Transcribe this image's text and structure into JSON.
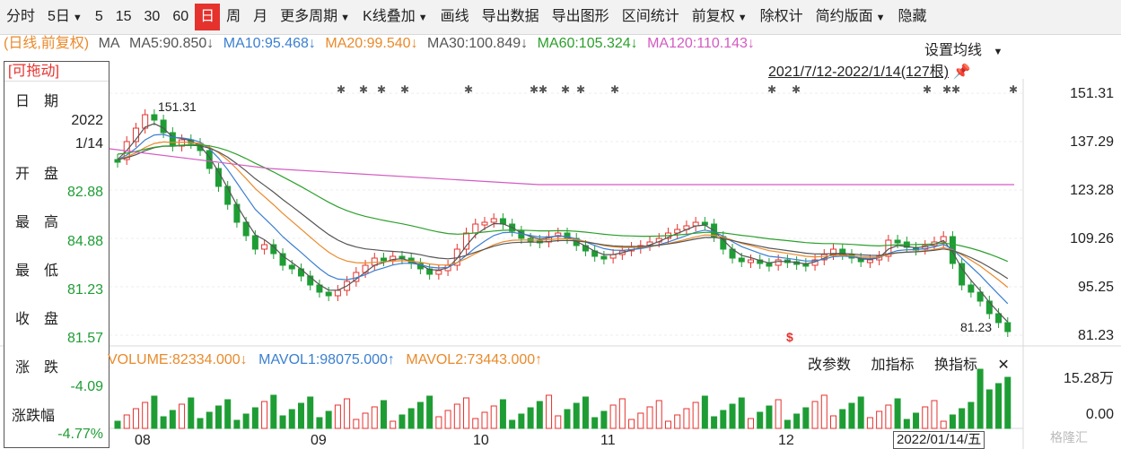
{
  "toolbar": {
    "items": [
      "分时",
      "5日",
      "5",
      "15",
      "30",
      "60",
      "日",
      "周",
      "月",
      "更多周期",
      "K线叠加",
      "画线",
      "导出数据",
      "导出图形",
      "区间统计",
      "前复权",
      "除权计",
      "简约版面",
      "隐藏"
    ],
    "active": "日"
  },
  "legend": {
    "prefix": "(日线,前复权)",
    "ma": "MA",
    "ma5": "MA5:90.850↓",
    "ma10": "MA10:95.468↓",
    "ma20": "MA20:99.540↓",
    "ma30": "MA30:100.849↓",
    "ma60": "MA60:105.324↓",
    "ma120": "MA120:110.143↓",
    "colors": {
      "ma5": "#555555",
      "ma10": "#3b7fd0",
      "ma20": "#e98a2b",
      "ma30": "#555555",
      "ma60": "#2ca02c",
      "ma120": "#d45ac2"
    }
  },
  "set_ma": "设置均线",
  "date_range": "2021/7/12-2022/1/14(127根)",
  "info": {
    "drag": "[可拖动]",
    "date_label": "日　期",
    "year": "2022",
    "md": "1/14",
    "open_label": "开　盘",
    "open": "82.88",
    "high_label": "最　高",
    "high": "84.88",
    "low_label": "最　低",
    "low": "81.23",
    "close_label": "收　盘",
    "close": "81.57",
    "chg_label": "涨　跌",
    "chg": "-4.09",
    "pct_label": "涨跌幅",
    "pct": "-4.77%"
  },
  "price_axis": [
    "151.31",
    "137.29",
    "123.28",
    "109.26",
    "95.25",
    "81.23"
  ],
  "annot": {
    "high": "151.31",
    "low": "81.23"
  },
  "volume": {
    "title": "VOLUME:82334.000↓",
    "mavol1": "MAVOL1:98075.000↑",
    "mavol2": "MAVOL2:73443.000↑",
    "btn_params": "改参数",
    "btn_add": "加指标",
    "btn_swap": "换指标",
    "btn_close": "✕",
    "axis_top": "15.28万",
    "axis_bottom": "0.00"
  },
  "x_labels": [
    "08",
    "09",
    "10",
    "11",
    "12"
  ],
  "current_date": "2022/01/14/五",
  "watermark": "格隆汇",
  "colors": {
    "up": "#e5322d",
    "down": "#1f9d35",
    "accent": "#e5322d"
  }
}
